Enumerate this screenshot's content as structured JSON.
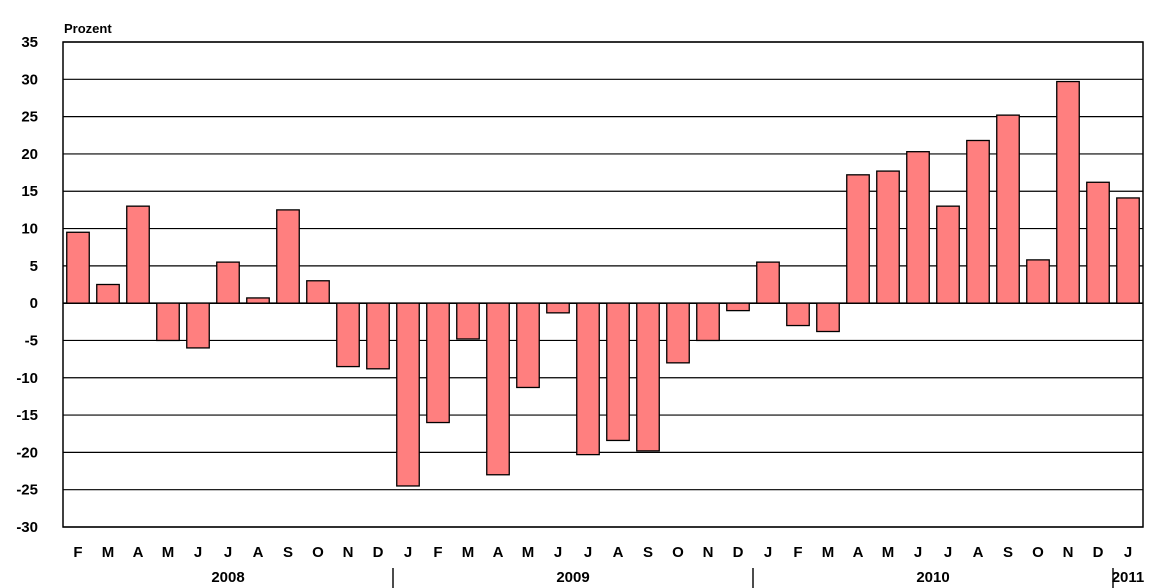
{
  "chart_data": {
    "type": "bar",
    "title": "",
    "xlabel": "",
    "ylabel": "Prozent",
    "ylim": [
      -30,
      35
    ],
    "yticks": [
      35,
      30,
      25,
      20,
      15,
      10,
      5,
      0,
      -5,
      -10,
      -15,
      -20,
      -25,
      -30
    ],
    "grid": true,
    "bar_color": "#ff7f7f",
    "bar_edge_color": "#000000",
    "categories": [
      "F",
      "M",
      "A",
      "M",
      "J",
      "J",
      "A",
      "S",
      "O",
      "N",
      "D",
      "J",
      "F",
      "M",
      "A",
      "M",
      "J",
      "J",
      "A",
      "S",
      "O",
      "N",
      "D",
      "J",
      "F",
      "M",
      "A",
      "M",
      "J",
      "J",
      "A",
      "S",
      "O",
      "N",
      "D",
      "J"
    ],
    "values": [
      9.5,
      2.5,
      13,
      -5,
      -6,
      5.5,
      0.7,
      12.5,
      3,
      -8.5,
      -8.8,
      -24.5,
      -16,
      -4.8,
      -23,
      -11.3,
      -1.3,
      -20.3,
      -18.4,
      -19.8,
      -8,
      -5,
      -1,
      5.5,
      -3,
      -3.8,
      17.2,
      17.7,
      20.3,
      13,
      21.8,
      25.2,
      5.8,
      29.7,
      16.2,
      14.1
    ],
    "years": [
      {
        "label": "2008",
        "start": 0,
        "end": 10
      },
      {
        "label": "2009",
        "start": 11,
        "end": 22
      },
      {
        "label": "2010",
        "start": 23,
        "end": 34
      },
      {
        "label": "2011",
        "start": 35,
        "end": 35
      }
    ]
  }
}
